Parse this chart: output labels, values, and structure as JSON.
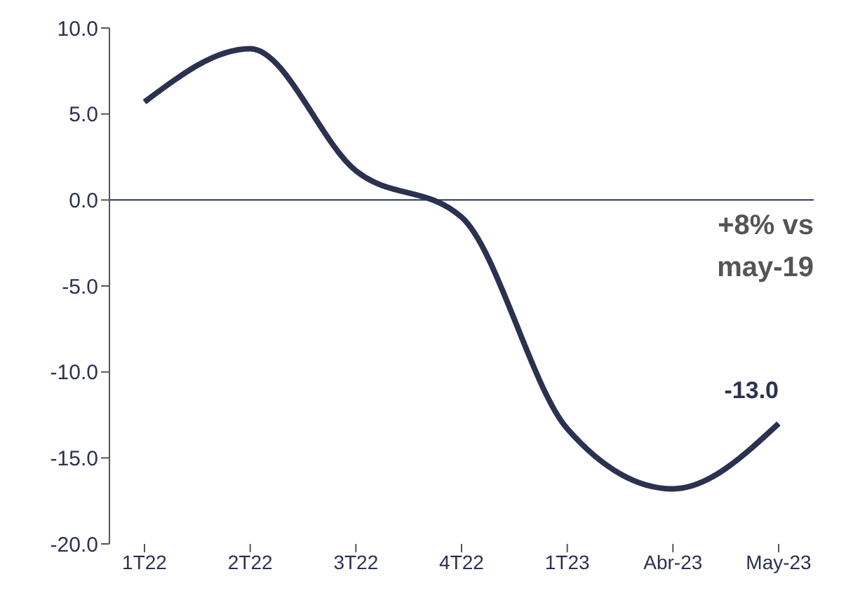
{
  "chart_data": {
    "type": "line",
    "categories": [
      "1T22",
      "2T22",
      "3T22",
      "4T22",
      "1T23",
      "Abr-23",
      "May-23"
    ],
    "series": [
      {
        "color": "#2b3150",
        "values": [
          5.7,
          8.8,
          1.7,
          -1.0,
          -13.3,
          -16.8,
          -13.0
        ],
        "value_labels": [
          null,
          null,
          null,
          null,
          null,
          null,
          "-13.0"
        ]
      }
    ],
    "ylim": [
      -20,
      10
    ],
    "yticks": [
      {
        "value": -20,
        "label": "-20.0"
      },
      {
        "value": -15,
        "label": "-15.0"
      },
      {
        "value": -10,
        "label": "-10.0"
      },
      {
        "value": -5,
        "label": "-5.0"
      },
      {
        "value": 0,
        "label": "0.0"
      },
      {
        "value": 5,
        "label": "5.0"
      },
      {
        "value": 10,
        "label": "10.0"
      }
    ],
    "ref_lines": [
      {
        "axis": "y",
        "value": 0,
        "color": "#2b3150"
      }
    ],
    "annotations": [
      "+8% vs may-19"
    ],
    "grid": false,
    "legend": false,
    "marker": "none",
    "line_style": "solid"
  }
}
